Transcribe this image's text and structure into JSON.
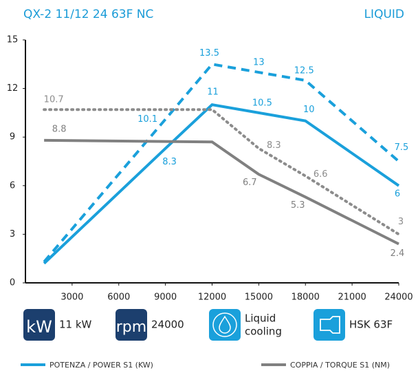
{
  "chart_data": {
    "type": "line",
    "title": "QX-2 11/12 24 63F NC",
    "subtitle": "LIQUID",
    "xlim": [
      0,
      24000
    ],
    "xticks": [
      3000,
      6000,
      9000,
      12000,
      15000,
      18000,
      21000,
      24000
    ],
    "ylim": [
      0,
      15
    ],
    "yticks": [
      0,
      3,
      6,
      9,
      12,
      15
    ],
    "series": [
      {
        "color": "#1aa0db",
        "dash": "dashed",
        "x": [
          1200,
          9000,
          12000,
          15000,
          18000,
          24000
        ],
        "values": [
          1.3,
          10.1,
          13.5,
          13,
          12.5,
          7.5
        ],
        "value_labels": [
          null,
          "10.1",
          "13.5",
          "13",
          "12.5",
          "7.5"
        ]
      },
      {
        "name": "POTENZA / POWER S1 (KW)",
        "color": "#1aa0db",
        "dash": "solid",
        "x": [
          1200,
          9000,
          12000,
          15000,
          18000,
          24000
        ],
        "values": [
          1.2,
          8.3,
          11,
          10.5,
          10,
          6
        ],
        "value_labels": [
          null,
          "8.3",
          "11",
          "10.5",
          "10",
          "6"
        ]
      },
      {
        "color": "#8c8c8c",
        "dash": "dotted",
        "x": [
          1200,
          12000,
          15000,
          18000,
          24000
        ],
        "values": [
          10.7,
          10.7,
          8.3,
          6.6,
          3
        ],
        "value_labels": [
          "10.7",
          null,
          "8.3",
          "6.6",
          "3"
        ]
      },
      {
        "name": "COPPIA / TORQUE S1 (NM)",
        "color": "#808080",
        "dash": "solid",
        "x": [
          1200,
          12000,
          15000,
          18000,
          24000
        ],
        "values": [
          8.8,
          8.7,
          6.7,
          5.3,
          2.4
        ],
        "value_labels": [
          "8.8",
          null,
          "6.7",
          "5.3",
          "2.4"
        ]
      }
    ]
  },
  "features": [
    {
      "icon": "kW",
      "label": "11 kW"
    },
    {
      "icon": "rpm",
      "label": "24000"
    },
    {
      "label": [
        "Liquid",
        "cooling"
      ]
    },
    {
      "label": "HSK 63F"
    }
  ]
}
